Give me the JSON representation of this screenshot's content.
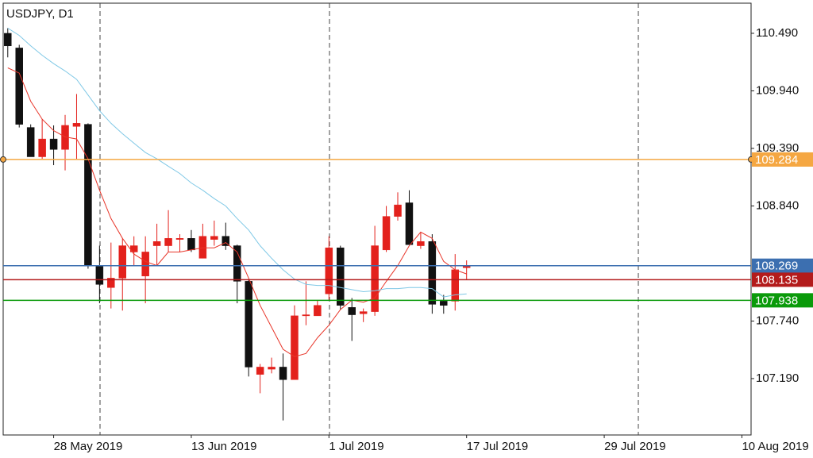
{
  "chart_data": {
    "type": "candlestick",
    "title": "USDJPY, D1",
    "xlim": [
      -0.4,
      64.8
    ],
    "xticks": [
      {
        "value": 4,
        "label": "28 May 2019"
      },
      {
        "value": 16,
        "label": "13 Jun 2019"
      },
      {
        "value": 28,
        "label": "1 Jul 2019"
      },
      {
        "value": 40,
        "label": "17 Jul 2019"
      },
      {
        "value": 52,
        "label": "29 Jul 2019"
      },
      {
        "value": 64,
        "label": "10 Aug 2019"
      }
    ],
    "ylim": [
      106.651,
      110.778
    ],
    "yticks": [
      {
        "value": 110.49,
        "label": "110.490"
      },
      {
        "value": 109.94,
        "label": "109.940"
      },
      {
        "value": 109.39,
        "label": "109.390"
      },
      {
        "value": 108.84,
        "label": "108.840"
      },
      {
        "value": 107.74,
        "label": "107.740"
      },
      {
        "value": 107.19,
        "label": "107.190"
      }
    ],
    "bull_color": "#e3211c",
    "bear_color": "#111111",
    "open": [
      110.49,
      110.35,
      109.59,
      109.31,
      109.48,
      109.38,
      109.6,
      109.62,
      108.27,
      108.06,
      108.15,
      108.4,
      108.17,
      108.46,
      108.46,
      108.52,
      108.53,
      108.34,
      108.52,
      108.55,
      108.46,
      108.12,
      107.23,
      107.28,
      107.3,
      107.18,
      107.79,
      107.79,
      108.0,
      108.44,
      107.87,
      107.81,
      107.83,
      108.42,
      108.74,
      108.87,
      108.46,
      108.5,
      107.93,
      107.93,
      108.25
    ],
    "high": [
      110.54,
      110.38,
      109.62,
      109.67,
      109.61,
      109.71,
      109.91,
      109.63,
      108.46,
      108.49,
      108.53,
      108.55,
      108.55,
      108.67,
      108.8,
      108.57,
      108.61,
      108.67,
      108.7,
      108.68,
      108.47,
      108.14,
      107.33,
      107.39,
      107.43,
      107.89,
      108.12,
      107.94,
      108.55,
      108.46,
      107.96,
      107.86,
      108.65,
      108.84,
      108.97,
      108.99,
      108.59,
      108.57,
      107.99,
      108.38,
      108.32
    ],
    "low": [
      110.26,
      109.59,
      109.31,
      109.29,
      109.23,
      109.18,
      109.29,
      108.24,
      107.91,
      107.86,
      107.84,
      108.27,
      107.91,
      108.27,
      108.4,
      108.4,
      108.4,
      108.34,
      108.46,
      108.42,
      107.91,
      107.21,
      107.05,
      107.24,
      106.79,
      107.18,
      107.7,
      107.79,
      107.94,
      107.85,
      107.55,
      107.73,
      107.79,
      108.4,
      108.7,
      108.47,
      108.43,
      107.81,
      107.81,
      107.84,
      108.14
    ],
    "close": [
      110.37,
      109.62,
      109.31,
      109.48,
      109.38,
      109.61,
      109.63,
      108.27,
      108.09,
      108.15,
      108.46,
      108.46,
      108.4,
      108.5,
      108.53,
      108.53,
      108.42,
      108.55,
      108.55,
      108.46,
      108.12,
      107.3,
      107.3,
      107.3,
      107.18,
      107.79,
      107.8,
      107.89,
      108.44,
      107.89,
      107.8,
      107.83,
      108.46,
      108.74,
      108.85,
      108.47,
      108.5,
      107.9,
      107.89,
      108.23,
      108.27
    ],
    "series": [
      {
        "color": "#e8362a",
        "values": [
          110.16,
          110.11,
          109.84,
          109.67,
          109.56,
          109.5,
          109.48,
          109.29,
          108.99,
          108.72,
          108.53,
          108.38,
          108.31,
          108.27,
          108.4,
          108.4,
          108.42,
          108.44,
          108.44,
          108.49,
          108.4,
          108.15,
          107.89,
          107.68,
          107.47,
          107.4,
          107.43,
          107.58,
          107.7,
          107.85,
          107.94,
          107.92,
          107.96,
          108.12,
          108.27,
          108.46,
          108.59,
          108.53,
          108.31,
          108.23,
          108.19
        ]
      },
      {
        "color": "#7fc8e6",
        "values": [
          110.54,
          110.47,
          110.37,
          110.28,
          110.2,
          110.13,
          110.05,
          109.9,
          109.75,
          109.63,
          109.53,
          109.44,
          109.35,
          109.29,
          109.22,
          109.15,
          109.06,
          108.99,
          108.91,
          108.84,
          108.72,
          108.61,
          108.46,
          108.34,
          108.23,
          108.14,
          108.09,
          108.08,
          108.08,
          108.06,
          108.04,
          108.02,
          108.03,
          108.05,
          108.05,
          108.06,
          108.06,
          108.05,
          107.97,
          107.99,
          108.0
        ]
      }
    ],
    "levels": [
      {
        "value": 109.284,
        "color": "#f5a742"
      },
      {
        "value": 108.269,
        "color": "#3c6fb0"
      },
      {
        "value": 108.135,
        "color": "#b31b1b"
      },
      {
        "value": 107.938,
        "color": "#0a9a0a"
      }
    ]
  }
}
